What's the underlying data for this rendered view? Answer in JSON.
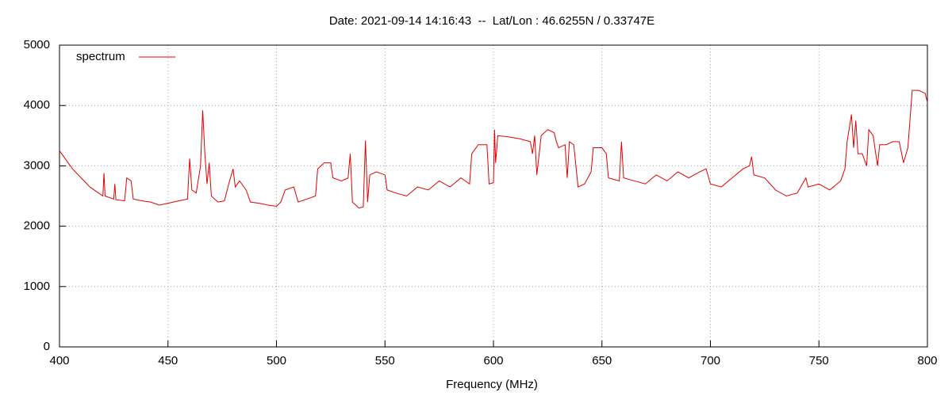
{
  "chart_data": {
    "type": "line",
    "title": "Date: 2021-09-14 14:16:43  --  Lat/Lon : 46.6255N / 0.33747E",
    "x_label": "Frequency (MHz)",
    "xlim": [
      400,
      800
    ],
    "xticks": [
      400,
      450,
      500,
      550,
      600,
      650,
      700,
      750,
      800
    ],
    "ylim": [
      0,
      5000
    ],
    "yticks": [
      0,
      1000,
      2000,
      3000,
      4000,
      5000
    ],
    "grid": true,
    "legend": "top-left",
    "x": [
      400,
      403,
      406,
      410,
      414,
      418,
      420,
      420.5,
      421,
      425,
      425.5,
      426,
      430,
      431,
      433,
      434,
      438,
      442,
      446,
      450,
      455,
      459,
      460,
      461,
      463,
      465,
      466,
      467,
      468,
      469,
      470,
      473,
      476,
      478,
      480,
      481,
      483,
      486,
      488,
      492,
      496,
      500,
      502,
      504,
      508,
      510,
      514,
      518,
      519,
      522,
      525,
      526,
      530,
      533,
      534,
      535,
      538,
      540,
      541,
      542,
      543,
      546,
      550,
      551,
      555,
      560,
      565,
      570,
      575,
      580,
      585,
      589,
      590,
      593,
      597,
      598,
      600,
      600.5,
      601,
      602,
      607,
      612,
      617,
      618,
      619,
      620,
      622,
      625,
      628,
      629,
      630,
      633,
      634,
      635,
      637,
      639,
      642,
      645,
      646,
      650,
      652,
      653,
      658,
      659,
      660,
      665,
      670,
      675,
      680,
      685,
      690,
      695,
      698,
      700,
      705,
      710,
      715,
      718,
      719,
      720,
      725,
      730,
      735,
      740,
      744,
      745,
      750,
      755,
      760,
      762,
      763,
      765,
      766,
      767,
      768,
      770,
      772,
      773,
      775,
      777,
      778,
      781,
      784,
      787,
      789,
      791,
      793,
      796,
      799,
      800
    ],
    "series": [
      {
        "name": "spectrum",
        "color": "#e00000",
        "values": [
          3250,
          3100,
          2950,
          2800,
          2650,
          2550,
          2500,
          2880,
          2500,
          2450,
          2700,
          2440,
          2420,
          2800,
          2750,
          2450,
          2420,
          2400,
          2350,
          2380,
          2420,
          2450,
          3120,
          2600,
          2550,
          3000,
          3920,
          3200,
          2700,
          3050,
          2500,
          2400,
          2420,
          2700,
          2950,
          2650,
          2750,
          2600,
          2400,
          2380,
          2350,
          2330,
          2400,
          2600,
          2650,
          2400,
          2450,
          2500,
          2950,
          3050,
          3050,
          2800,
          2750,
          2800,
          3200,
          2400,
          2300,
          2320,
          3420,
          2400,
          2850,
          2900,
          2850,
          2600,
          2550,
          2500,
          2650,
          2600,
          2750,
          2650,
          2800,
          2700,
          3200,
          3350,
          3350,
          2700,
          2720,
          3600,
          3050,
          3500,
          3480,
          3450,
          3400,
          3200,
          3500,
          2850,
          3500,
          3600,
          3550,
          3400,
          3300,
          3350,
          2800,
          3400,
          3350,
          2650,
          2700,
          2900,
          3300,
          3300,
          3200,
          2800,
          2750,
          3400,
          2800,
          2750,
          2700,
          2850,
          2750,
          2900,
          2800,
          2900,
          2950,
          2700,
          2650,
          2800,
          2950,
          3000,
          3150,
          2850,
          2800,
          2600,
          2500,
          2550,
          2800,
          2650,
          2700,
          2600,
          2750,
          2950,
          3400,
          3850,
          3300,
          3750,
          3200,
          3200,
          3000,
          3600,
          3500,
          3000,
          3350,
          3350,
          3400,
          3400,
          3050,
          3300,
          4250,
          4250,
          4200,
          4050
        ]
      }
    ]
  }
}
